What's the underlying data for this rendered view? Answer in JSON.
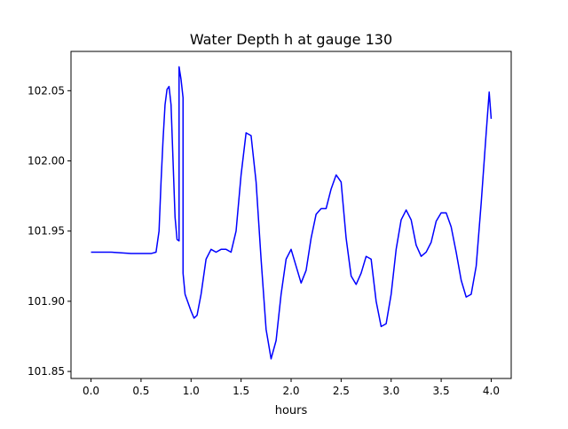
{
  "chart_data": {
    "type": "line",
    "title": "Water Depth h at gauge 130",
    "xlabel": "hours",
    "ylabel": "",
    "xlim": [
      -0.2,
      4.2
    ],
    "ylim": [
      101.845,
      102.078
    ],
    "xticks": [
      0.0,
      0.5,
      1.0,
      1.5,
      2.0,
      2.5,
      3.0,
      3.5,
      4.0
    ],
    "xtick_labels": [
      "0.0",
      "0.5",
      "1.0",
      "1.5",
      "2.0",
      "2.5",
      "3.0",
      "3.5",
      "4.0"
    ],
    "yticks": [
      101.85,
      101.9,
      101.95,
      102.0,
      102.05
    ],
    "ytick_labels": [
      "101.85",
      "101.90",
      "101.95",
      "102.00",
      "102.05"
    ],
    "grid": false,
    "series": [
      {
        "color": "#0000ff",
        "x": [
          0.0,
          0.2,
          0.4,
          0.55,
          0.6,
          0.65,
          0.68,
          0.7,
          0.72,
          0.74,
          0.76,
          0.78,
          0.8,
          0.82,
          0.84,
          0.86,
          0.88,
          0.88,
          0.9,
          0.92,
          0.92,
          0.94,
          0.97,
          1.0,
          1.03,
          1.06,
          1.1,
          1.15,
          1.2,
          1.25,
          1.3,
          1.35,
          1.4,
          1.45,
          1.5,
          1.55,
          1.6,
          1.65,
          1.7,
          1.75,
          1.8,
          1.85,
          1.9,
          1.95,
          2.0,
          2.05,
          2.1,
          2.15,
          2.2,
          2.25,
          2.3,
          2.35,
          2.4,
          2.45,
          2.5,
          2.55,
          2.6,
          2.65,
          2.7,
          2.75,
          2.8,
          2.85,
          2.9,
          2.95,
          3.0,
          3.05,
          3.1,
          3.15,
          3.2,
          3.25,
          3.3,
          3.35,
          3.4,
          3.45,
          3.5,
          3.55,
          3.6,
          3.65,
          3.7,
          3.75,
          3.8,
          3.85,
          3.9,
          3.95,
          3.98,
          4.0
        ],
        "y": [
          101.935,
          101.935,
          101.934,
          101.934,
          101.934,
          101.935,
          101.95,
          101.985,
          102.015,
          102.04,
          102.051,
          102.053,
          102.04,
          102.0,
          101.96,
          101.944,
          101.943,
          102.067,
          102.058,
          102.045,
          101.92,
          101.905,
          101.899,
          101.893,
          101.888,
          101.89,
          101.905,
          101.93,
          101.937,
          101.935,
          101.937,
          101.937,
          101.935,
          101.95,
          101.99,
          102.02,
          102.018,
          101.985,
          101.93,
          101.88,
          101.859,
          101.872,
          101.905,
          101.93,
          101.937,
          101.925,
          101.913,
          101.922,
          101.945,
          101.962,
          101.966,
          101.966,
          101.98,
          101.99,
          101.985,
          101.945,
          101.918,
          101.912,
          101.92,
          101.932,
          101.93,
          101.9,
          101.882,
          101.884,
          101.905,
          101.937,
          101.958,
          101.965,
          101.958,
          101.94,
          101.932,
          101.935,
          101.942,
          101.957,
          101.963,
          101.963,
          101.953,
          101.935,
          101.915,
          101.903,
          101.905,
          101.925,
          101.97,
          102.02,
          102.049,
          102.03
        ]
      }
    ]
  }
}
